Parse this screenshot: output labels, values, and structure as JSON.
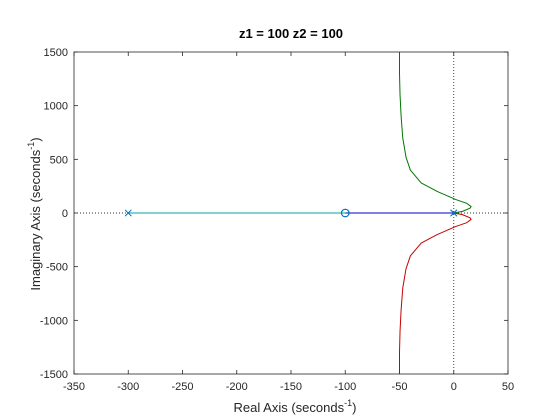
{
  "chart_data": {
    "type": "line",
    "title": "z1 = 100  z2 = 100",
    "xlabel": "Real Axis (seconds",
    "xlabel_sup": "-1",
    "xlabel_end": ")",
    "ylabel": "Imaginary Axis (seconds",
    "ylabel_sup": "-1",
    "ylabel_end": ")",
    "xlim": [
      -350,
      50
    ],
    "ylim": [
      -1500,
      1500
    ],
    "xticks": [
      -350,
      -300,
      -250,
      -200,
      -150,
      -100,
      -50,
      0,
      50
    ],
    "yticks": [
      -1500,
      -1000,
      -500,
      0,
      500,
      1000,
      1500
    ],
    "grid": false,
    "reference_lines": {
      "x": 0,
      "y": 0,
      "style": "dotted"
    },
    "poles": [
      {
        "x": -300,
        "y": 0
      },
      {
        "x": 0,
        "y": 0
      },
      {
        "x": 0,
        "y": 0
      }
    ],
    "zeros": [
      {
        "x": -100,
        "y": 0
      },
      {
        "x": -100,
        "y": 0
      }
    ],
    "colors": {
      "branch_cyan": "#00a5a5",
      "branch_blue": "#0000c8",
      "branch_green": "#007500",
      "branch_red": "#c80000",
      "marker": "#0072bd",
      "reference": "#333333"
    },
    "series": [
      {
        "color": "#00a5a5",
        "points": [
          [
            -300,
            0
          ],
          [
            -100,
            0
          ]
        ]
      },
      {
        "color": "#0000c8",
        "points": [
          [
            0,
            0
          ],
          [
            -100,
            0
          ]
        ]
      },
      {
        "color": "#007500",
        "points": [
          [
            0,
            0
          ],
          [
            8,
            15
          ],
          [
            15,
            45
          ],
          [
            16,
            60
          ],
          [
            12,
            90
          ],
          [
            2,
            125
          ],
          [
            -15,
            200
          ],
          [
            -30,
            280
          ],
          [
            -40,
            400
          ],
          [
            -44,
            520
          ],
          [
            -47,
            700
          ],
          [
            -48.5,
            900
          ],
          [
            -49.5,
            1100
          ],
          [
            -50,
            1300
          ],
          [
            -50,
            1500
          ]
        ]
      },
      {
        "color": "#c80000",
        "points": [
          [
            0,
            0
          ],
          [
            8,
            -15
          ],
          [
            15,
            -45
          ],
          [
            16,
            -60
          ],
          [
            12,
            -90
          ],
          [
            2,
            -125
          ],
          [
            -15,
            -200
          ],
          [
            -30,
            -280
          ],
          [
            -40,
            -400
          ],
          [
            -44,
            -520
          ],
          [
            -47,
            -700
          ],
          [
            -48.5,
            -900
          ],
          [
            -49.5,
            -1100
          ],
          [
            -50,
            -1300
          ],
          [
            -50,
            -1500
          ]
        ]
      }
    ]
  }
}
